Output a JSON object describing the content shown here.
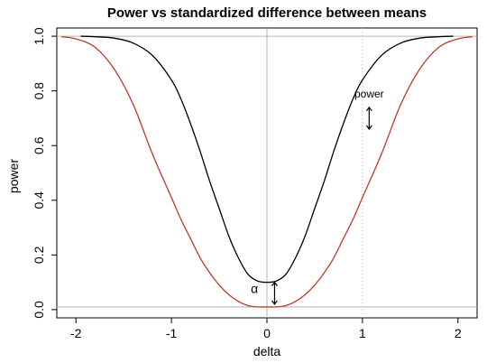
{
  "chart_data": {
    "type": "line",
    "title": "Power vs standardized difference between means",
    "xlabel": "delta",
    "ylabel": "power",
    "xlim": [
      -2.2,
      2.2
    ],
    "ylim": [
      -0.03,
      1.03
    ],
    "xticks": [
      "-2",
      "-1",
      "0",
      "1",
      "2"
    ],
    "xtick_values": [
      -2,
      -1,
      0,
      1,
      2
    ],
    "yticks": [
      "0.0",
      "0.2",
      "0.4",
      "0.6",
      "0.8",
      "1.0"
    ],
    "ytick_values": [
      0,
      0.2,
      0.4,
      0.6,
      0.8,
      1.0
    ],
    "reference_lines": {
      "h": [
        0.01,
        1.0
      ],
      "v_solid": [
        0
      ],
      "v_dotted": [
        1
      ]
    },
    "series": [
      {
        "color": "#000000",
        "x": [
          -1.95,
          -1.8,
          -1.6,
          -1.4,
          -1.2,
          -1.0,
          -0.9,
          -0.8,
          -0.7,
          -0.6,
          -0.5,
          -0.4,
          -0.3,
          -0.2,
          -0.1,
          0,
          0.1,
          0.2,
          0.3,
          0.4,
          0.5,
          0.6,
          0.7,
          0.8,
          0.9,
          1.0,
          1.2,
          1.4,
          1.6,
          1.8,
          1.95
        ],
        "y": [
          1.0,
          0.998,
          0.993,
          0.975,
          0.93,
          0.84,
          0.77,
          0.68,
          0.58,
          0.47,
          0.37,
          0.27,
          0.19,
          0.13,
          0.105,
          0.1,
          0.105,
          0.13,
          0.19,
          0.27,
          0.37,
          0.47,
          0.58,
          0.68,
          0.77,
          0.84,
          0.93,
          0.975,
          0.993,
          0.998,
          1.0
        ]
      },
      {
        "color": "#c0392b",
        "x": [
          -2.15,
          -2.0,
          -1.8,
          -1.6,
          -1.4,
          -1.2,
          -1.0,
          -0.9,
          -0.8,
          -0.7,
          -0.6,
          -0.5,
          -0.4,
          -0.3,
          -0.2,
          -0.1,
          0,
          0.1,
          0.2,
          0.3,
          0.4,
          0.5,
          0.6,
          0.7,
          0.8,
          0.9,
          1.0,
          1.2,
          1.4,
          1.6,
          1.8,
          2.0,
          2.15
        ],
        "y": [
          0.998,
          0.99,
          0.96,
          0.88,
          0.75,
          0.57,
          0.41,
          0.33,
          0.26,
          0.19,
          0.135,
          0.09,
          0.055,
          0.03,
          0.015,
          0.01,
          0.01,
          0.01,
          0.015,
          0.03,
          0.055,
          0.09,
          0.135,
          0.19,
          0.26,
          0.33,
          0.41,
          0.57,
          0.75,
          0.88,
          0.96,
          0.99,
          0.998
        ]
      }
    ],
    "annotations": [
      {
        "text": "power",
        "x": 1.07,
        "y": 0.775
      },
      {
        "text": "α",
        "x": -0.13,
        "y": 0.06
      }
    ],
    "arrows": [
      {
        "x": 1.07,
        "y1": 0.66,
        "y2": 0.74
      },
      {
        "x": 0.08,
        "y1": 0.02,
        "y2": 0.1
      }
    ]
  }
}
